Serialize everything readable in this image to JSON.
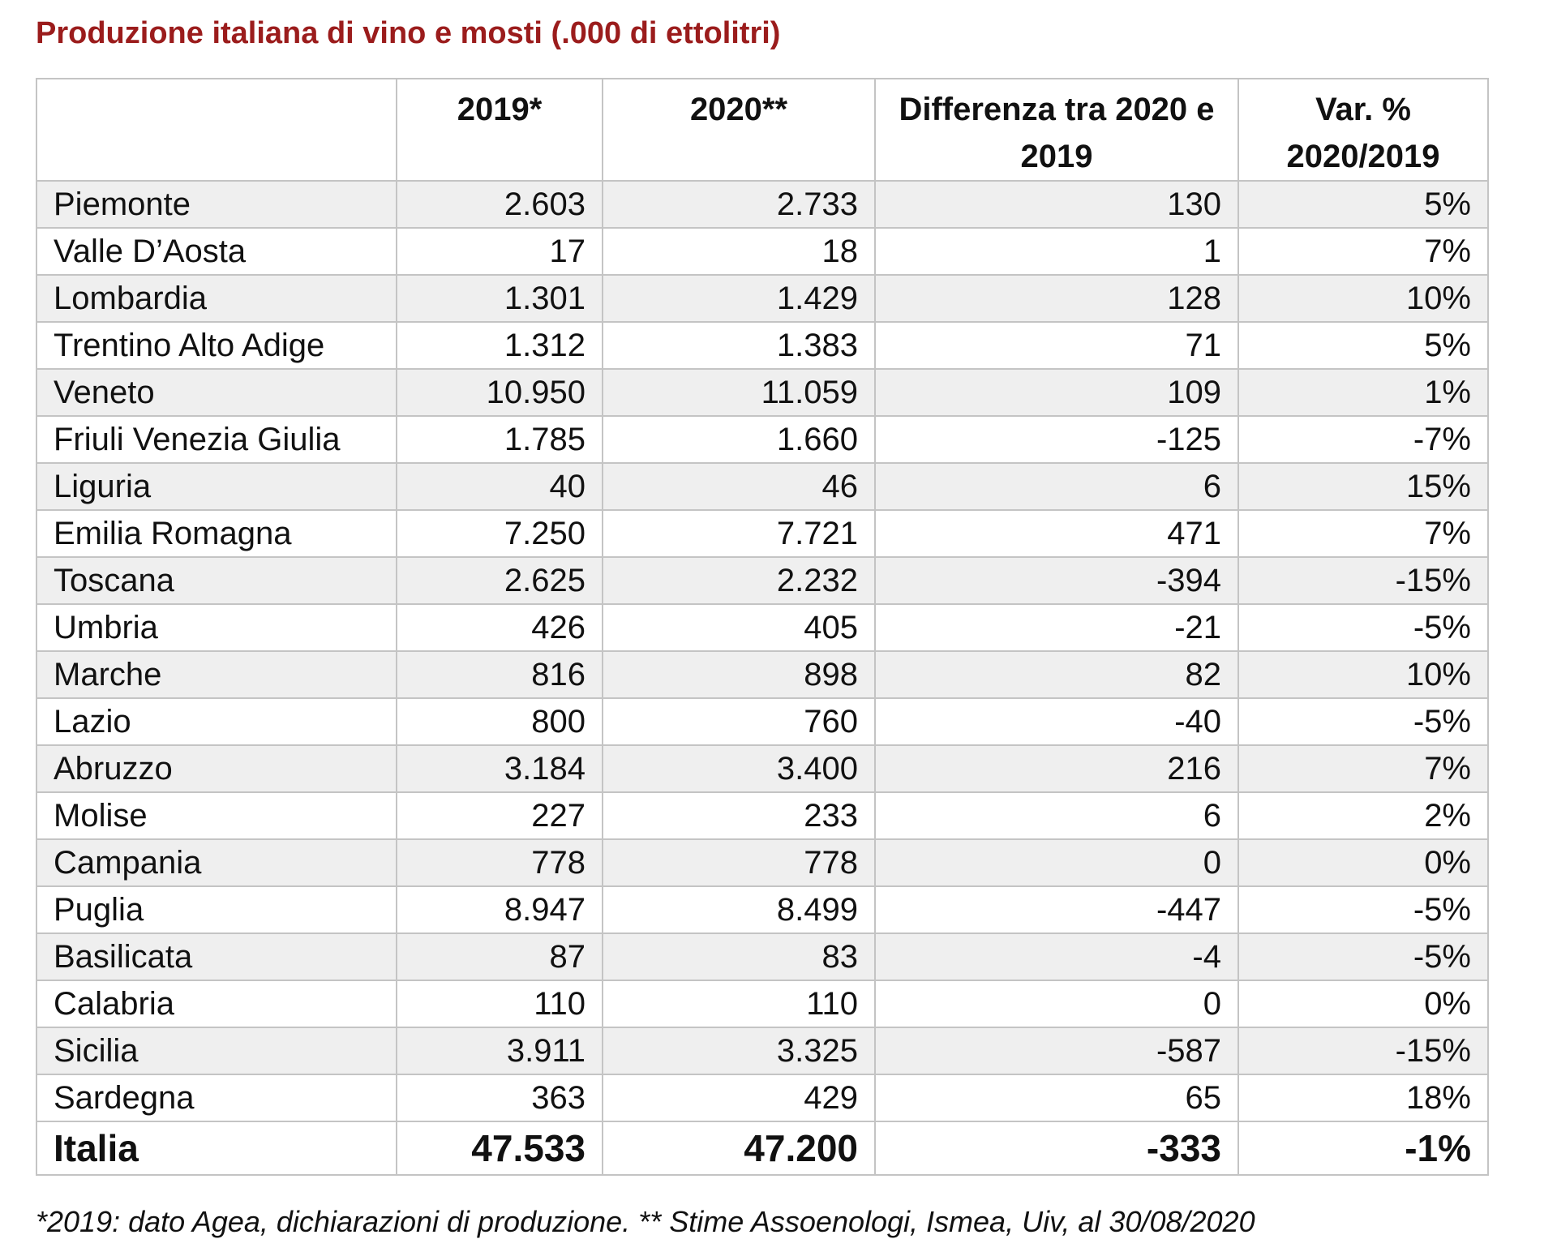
{
  "title": "Produzione italiana di vino e mosti (.000 di ettolitri)",
  "table": {
    "headers": [
      "",
      "2019*",
      "2020**",
      "Differenza tra 2020 e 2019",
      "Var. % 2020/2019"
    ],
    "rows": [
      [
        "Piemonte",
        "2.603",
        "2.733",
        "130",
        "5%"
      ],
      [
        "Valle D’Aosta",
        "17",
        "18",
        "1",
        "7%"
      ],
      [
        "Lombardia",
        "1.301",
        "1.429",
        "128",
        "10%"
      ],
      [
        "Trentino Alto Adige",
        "1.312",
        "1.383",
        "71",
        "5%"
      ],
      [
        "Veneto",
        "10.950",
        "11.059",
        "109",
        "1%"
      ],
      [
        "Friuli Venezia Giulia",
        "1.785",
        "1.660",
        "-125",
        "-7%"
      ],
      [
        "Liguria",
        "40",
        "46",
        "6",
        "15%"
      ],
      [
        "Emilia Romagna",
        "7.250",
        "7.721",
        "471",
        "7%"
      ],
      [
        "Toscana",
        "2.625",
        "2.232",
        "-394",
        "-15%"
      ],
      [
        "Umbria",
        "426",
        "405",
        "-21",
        "-5%"
      ],
      [
        "Marche",
        "816",
        "898",
        "82",
        "10%"
      ],
      [
        "Lazio",
        "800",
        "760",
        "-40",
        "-5%"
      ],
      [
        "Abruzzo",
        "3.184",
        "3.400",
        "216",
        "7%"
      ],
      [
        "Molise",
        "227",
        "233",
        "6",
        "2%"
      ],
      [
        "Campania",
        "778",
        "778",
        "0",
        "0%"
      ],
      [
        "Puglia",
        "8.947",
        "8.499",
        "-447",
        "-5%"
      ],
      [
        "Basilicata",
        "87",
        "83",
        "-4",
        "-5%"
      ],
      [
        "Calabria",
        "110",
        "110",
        "0",
        "0%"
      ],
      [
        "Sicilia",
        "3.911",
        "3.325",
        "-587",
        "-15%"
      ],
      [
        "Sardegna",
        "363",
        "429",
        "65",
        "18%"
      ]
    ],
    "total": [
      "Italia",
      "47.533",
      "47.200",
      "-333",
      "-1%"
    ]
  },
  "footnote": "*2019: dato Agea, dichiarazioni di produzione. ** Stime Assoenologi, Ismea, Uiv, al 30/08/2020",
  "colors": {
    "title": "#9b1c1c",
    "row_shade": "#efefef",
    "border": "#c4c4c4"
  }
}
